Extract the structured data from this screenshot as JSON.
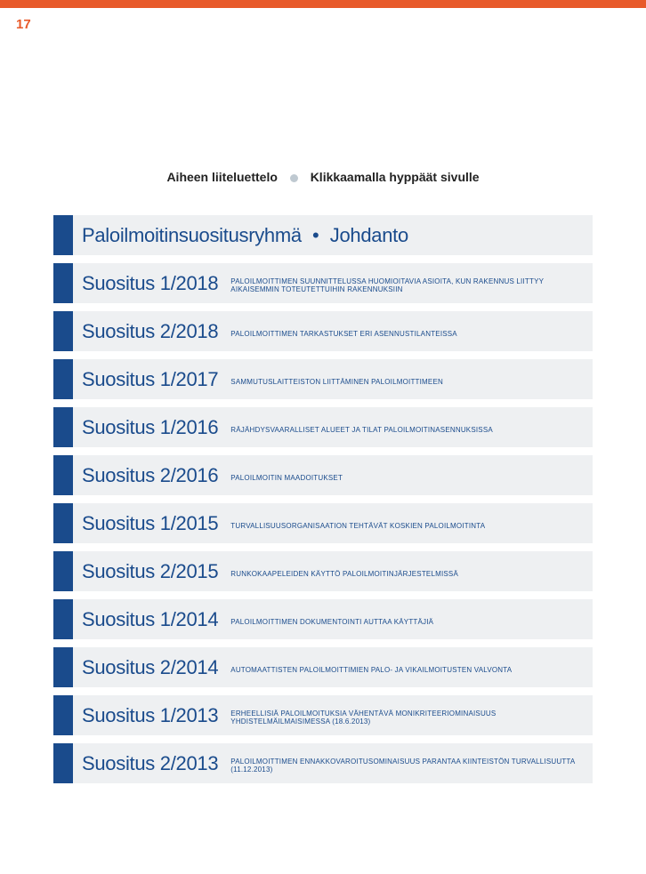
{
  "pageNumber": "17",
  "header": {
    "left": "Aiheen liiteluettelo",
    "right": "Klikkaamalla hyppäät sivulle"
  },
  "introRow": {
    "left": "Paloilmoitinsuositusryhmä",
    "right": "Johdanto"
  },
  "rows": [
    {
      "title": "Suositus 1/2018",
      "sub": "PALOILMOITTIMEN SUUNNITTELUSSA HUOMIOITAVIA ASIOITA, KUN RAKENNUS LIITTYY AIKAISEMMIN TOTEUTETTUIHIN RAKENNUKSIIN"
    },
    {
      "title": "Suositus 2/2018",
      "sub": "PALOILMOITTIMEN TARKASTUKSET ERI ASENNUSTILANTEISSA"
    },
    {
      "title": "Suositus 1/2017",
      "sub": "SAMMUTUSLAITTEISTON LIITTÄMINEN PALOILMOITTIMEEN"
    },
    {
      "title": "Suositus 1/2016",
      "sub": "RÄJÄHDYSVAARALLISET ALUEET JA TILAT PALOILMOITINASENNUKSISSA"
    },
    {
      "title": "Suositus 2/2016",
      "sub": "PALOILMOITIN MAADOITUKSET"
    },
    {
      "title": "Suositus 1/2015",
      "sub": "TURVALLISUUSORGANISAATION TEHTÄVÄT KOSKIEN PALOILMOITINTA"
    },
    {
      "title": "Suositus 2/2015",
      "sub": "RUNKOKAAPELEIDEN KÄYTTÖ PALOILMOITINJÄRJESTELMISSÄ"
    },
    {
      "title": "Suositus 1/2014",
      "sub": "PALOILMOITTIMEN DOKUMENTOINTI AUTTAA KÄYTTÄJIÄ"
    },
    {
      "title": "Suositus 2/2014",
      "sub": "AUTOMAATTISTEN PALOILMOITTIMIEN PALO- JA VIKAILMOITUSTEN VALVONTA"
    },
    {
      "title": "Suositus 1/2013",
      "sub": "ERHEELLISIÄ PALOILMOITUKSIA VÄHENTÄVÄ MONIKRITEERIOMINAISUUS YHDISTELMÄILMAISIMESSA (18.6.2013)"
    },
    {
      "title": "Suositus 2/2013",
      "sub": "PALOILMOITTIMEN ENNAKKOVAROITUSOMINAISUUS PARANTAA KIINTEISTÖN TURVALLISUUTTA (11.12.2013)"
    }
  ],
  "colors": {
    "accent": "#e85a2a",
    "primary": "#1a4b8c",
    "rowBg": "#eef0f2",
    "bullet": "#bfc9d1"
  }
}
